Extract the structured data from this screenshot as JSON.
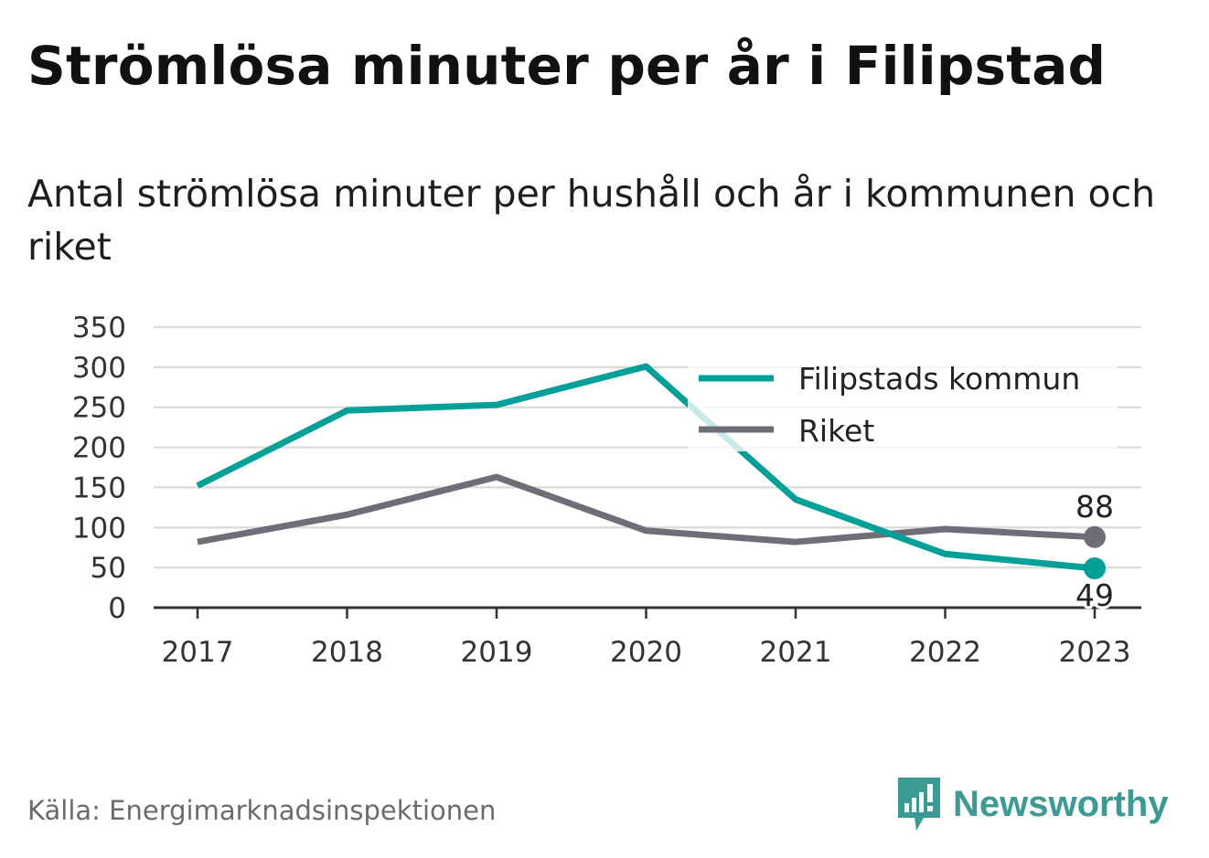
{
  "title": "Strömlösa minuter per år i Filipstad",
  "subtitle": "Antal strömlösa minuter per hushåll och år i kommunen och riket",
  "source": "Källa: Energimarknadsinspektionen",
  "brand": {
    "name": "Newsworthy",
    "icon": "newsworthy-logo-icon"
  },
  "colors": {
    "filipstad": "#00a099",
    "riket": "#6e6e78",
    "grid": "#dcdcdc",
    "axis": "#333333"
  },
  "chart_data": {
    "type": "line",
    "x": [
      "2017",
      "2018",
      "2019",
      "2020",
      "2021",
      "2022",
      "2023"
    ],
    "yticks": [
      "350",
      "300",
      "250",
      "200",
      "150",
      "100",
      "50",
      "0"
    ],
    "ylim": [
      0,
      350
    ],
    "grid": true,
    "legend_position": "top-right",
    "series": [
      {
        "name": "Filipstads kommun",
        "values": [
          152,
          246,
          253,
          301,
          135,
          67,
          49
        ],
        "end_label": "49"
      },
      {
        "name": "Riket",
        "values": [
          82,
          116,
          163,
          96,
          82,
          98,
          88
        ],
        "end_label": "88"
      }
    ]
  }
}
